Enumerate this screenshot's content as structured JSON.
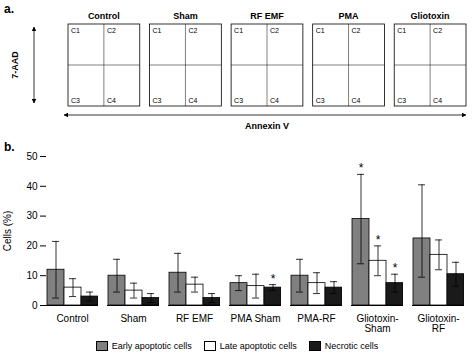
{
  "chart_data": [
    {
      "type": "quadrant",
      "title": "a.",
      "categories": [
        "Control",
        "Sham",
        "RF EMF",
        "PMA",
        "Gliotoxin"
      ],
      "annotations": [
        "C1",
        "C2",
        "C3",
        "C4"
      ],
      "xlabel": "Annexin V",
      "ylabel": "7-AAD"
    },
    {
      "type": "bar",
      "title": "b.",
      "categories": [
        "Control",
        "Sham",
        "RF EMF",
        "PMA Sham",
        "PMA-RF",
        "Gliotoxin-\nSham",
        "Gliotoxin-\nRF"
      ],
      "series": [
        {
          "name": "Early apoptotic cells",
          "color": "#808080",
          "values": [
            12,
            10,
            11,
            7.5,
            10,
            29,
            22.5
          ],
          "err_low": [
            9.5,
            5.5,
            6.5,
            2.5,
            5.5,
            15,
            13
          ],
          "err_high": [
            9.5,
            5.5,
            6.5,
            2.5,
            5.5,
            15,
            18
          ]
        },
        {
          "name": "Late apoptotic cells",
          "color": "#ffffff",
          "values": [
            6,
            5,
            7,
            6.5,
            7.5,
            15,
            17
          ],
          "err_low": [
            3,
            2.5,
            2.5,
            4,
            3.5,
            5,
            5
          ],
          "err_high": [
            3,
            2.5,
            2.5,
            4,
            3.5,
            5,
            5
          ]
        },
        {
          "name": "Necrotic cells",
          "color": "#1a1a1a",
          "values": [
            3,
            2.5,
            2.5,
            6,
            6,
            7.5,
            10.5
          ],
          "err_low": [
            1.5,
            1.5,
            1.5,
            1,
            2,
            3,
            4
          ],
          "err_high": [
            1.5,
            1.5,
            1.5,
            1,
            2,
            3,
            4
          ]
        }
      ],
      "ylabel": "Cells (%)",
      "ylim": [
        0,
        50
      ],
      "yticks": [
        0,
        10,
        20,
        30,
        40,
        50
      ],
      "grid": false,
      "legend": "bottom",
      "annotations": [
        {
          "text": "*",
          "category": "Gliotoxin-\nSham",
          "series": "Early apoptotic cells"
        },
        {
          "text": "*",
          "category": "Gliotoxin-\nSham",
          "series": "Late apoptotic cells"
        },
        {
          "text": "*",
          "category": "Gliotoxin-\nSham",
          "series": "Necrotic cells"
        },
        {
          "text": "*",
          "category": "PMA Sham",
          "series": "Necrotic cells"
        }
      ]
    }
  ]
}
